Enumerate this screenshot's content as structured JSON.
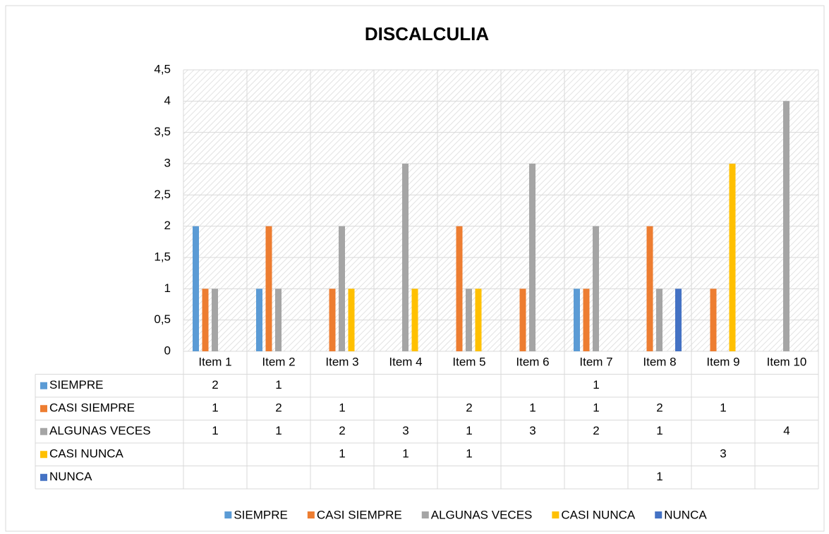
{
  "chart_data": {
    "type": "bar",
    "title": "DISCALCULIA",
    "categories": [
      "Item 1",
      "Item 2",
      "Item 3",
      "Item 4",
      "Item 5",
      "Item 6",
      "Item 7",
      "Item 8",
      "Item 9",
      "Item 10"
    ],
    "series": [
      {
        "name": "SIEMPRE",
        "color": "#5b9bd5",
        "values": [
          2,
          1,
          null,
          null,
          null,
          null,
          1,
          null,
          null,
          null
        ]
      },
      {
        "name": "CASI SIEMPRE",
        "color": "#ed7d31",
        "values": [
          1,
          2,
          1,
          null,
          2,
          1,
          1,
          2,
          1,
          null
        ]
      },
      {
        "name": "ALGUNAS VECES",
        "color": "#a5a5a5",
        "values": [
          1,
          1,
          2,
          3,
          1,
          3,
          2,
          1,
          null,
          4
        ]
      },
      {
        "name": "CASI NUNCA",
        "color": "#ffc000",
        "values": [
          null,
          null,
          1,
          1,
          1,
          null,
          null,
          null,
          3,
          null
        ]
      },
      {
        "name": "NUNCA",
        "color": "#4472c4",
        "values": [
          null,
          null,
          null,
          null,
          null,
          null,
          null,
          1,
          null,
          null
        ]
      }
    ],
    "ylim": [
      0,
      4.5
    ],
    "yticks": [
      0,
      {
        "value": 0.5,
        "label": "0,5"
      },
      1,
      {
        "value": 1.5,
        "label": "1,5"
      },
      2,
      {
        "value": 2.5,
        "label": "2,5"
      },
      3,
      {
        "value": 3.5,
        "label": "3,5"
      },
      4,
      {
        "value": 4.5,
        "label": "4,5"
      }
    ],
    "grid": true,
    "legend": "bottom"
  }
}
